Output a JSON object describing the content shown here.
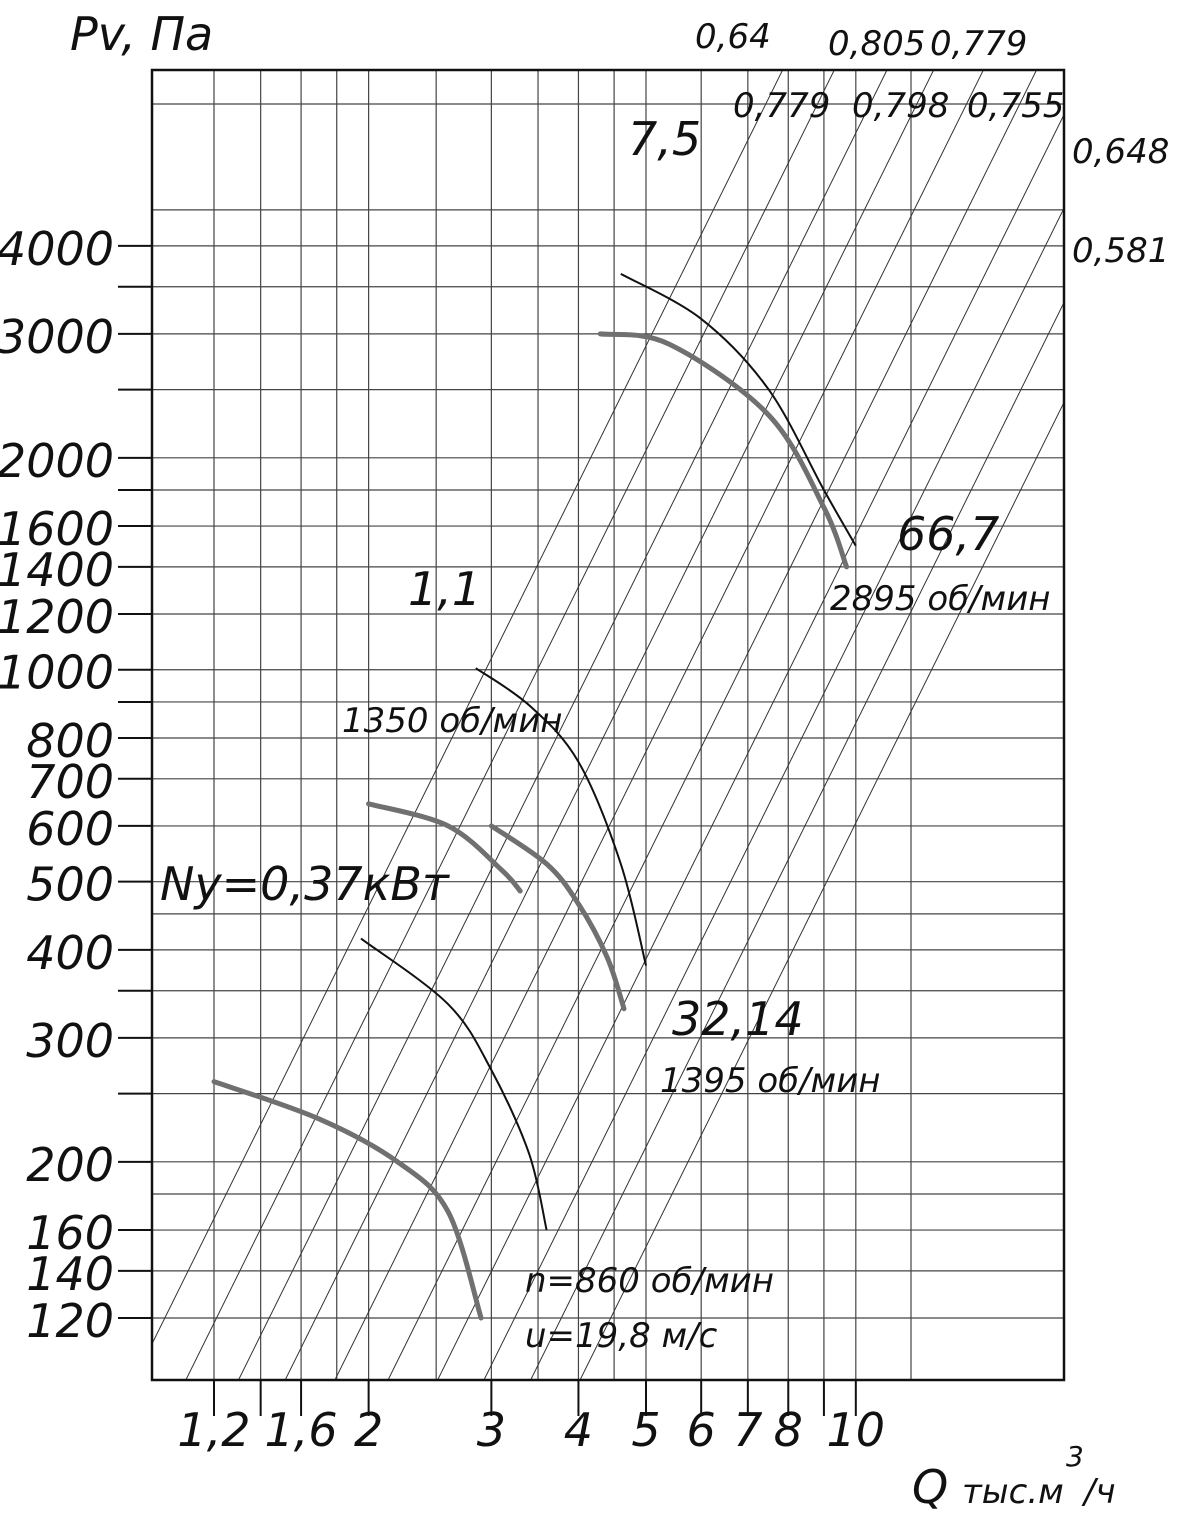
{
  "chart_data": {
    "type": "line",
    "scale": "log-log",
    "ylabel": "Pv, Па",
    "xlabel": "Q тыс.м³/ч",
    "xlim": [
      1.0,
      15.0
    ],
    "ylim": [
      100,
      5000
    ],
    "y_ticks_labeled": [
      120,
      140,
      160,
      200,
      300,
      400,
      500,
      600,
      700,
      800,
      1000,
      1200,
      1400,
      1600,
      2000,
      3000,
      4000
    ],
    "y_ticks_unlabeled": [
      250,
      350,
      900,
      1800,
      2500,
      3500
    ],
    "x_ticks_labeled": [
      {
        "value": 1.2,
        "label": "1,2"
      },
      {
        "value": 1.6,
        "label": "1,6"
      },
      {
        "value": 2,
        "label": "2"
      },
      {
        "value": 3,
        "label": "3"
      },
      {
        "value": 4,
        "label": "4"
      },
      {
        "value": 5,
        "label": "5"
      },
      {
        "value": 6,
        "label": "6"
      },
      {
        "value": 7,
        "label": "7"
      },
      {
        "value": 8,
        "label": "8"
      },
      {
        "value": 10,
        "label": "10"
      }
    ],
    "x_ticks_unlabeled": [
      1.4,
      9
    ],
    "x_grid": [
      1.2,
      1.4,
      1.6,
      1.8,
      2,
      2.5,
      3,
      3.5,
      4,
      4.5,
      5,
      6,
      7,
      8,
      9,
      10,
      12
    ],
    "y_grid": [
      120,
      140,
      160,
      180,
      200,
      250,
      300,
      350,
      400,
      450,
      500,
      600,
      700,
      800,
      900,
      1000,
      1200,
      1400,
      1600,
      1800,
      2000,
      2500,
      3000,
      3500,
      4000,
      4500
    ],
    "grid": true,
    "diagonal_lines": {
      "description": "lines of constant velocity (Pv ∝ Q²)",
      "anchors_Q_at_Pv_120": [
        1.02,
        1.21,
        1.44,
        1.68,
        1.98,
        2.36,
        2.78,
        3.24,
        3.78,
        4.45
      ]
    },
    "series": [
      {
        "style": "thin",
        "points": [
          [
            1.95,
            415
          ],
          [
            2.6,
            335
          ],
          [
            3.0,
            270
          ],
          [
            3.4,
            205
          ],
          [
            3.6,
            160
          ]
        ]
      },
      {
        "style": "thick",
        "points": [
          [
            1.2,
            260
          ],
          [
            1.7,
            230
          ],
          [
            2.2,
            200
          ],
          [
            2.6,
            170
          ],
          [
            2.9,
            120
          ]
        ]
      },
      {
        "style": "thin",
        "points": [
          [
            2.85,
            1005
          ],
          [
            3.4,
            890
          ],
          [
            4.0,
            740
          ],
          [
            4.6,
            530
          ],
          [
            5.0,
            380
          ]
        ]
      },
      {
        "style": "thick",
        "points": [
          [
            2.0,
            645
          ],
          [
            2.6,
            600
          ],
          [
            3.1,
            520
          ],
          [
            3.3,
            485
          ]
        ]
      },
      {
        "style": "thick",
        "points": [
          [
            3.0,
            600
          ],
          [
            3.6,
            530
          ],
          [
            4.0,
            465
          ],
          [
            4.4,
            390
          ],
          [
            4.65,
            330
          ]
        ]
      },
      {
        "style": "thin",
        "points": [
          [
            4.6,
            3650
          ],
          [
            6.0,
            3150
          ],
          [
            7.5,
            2500
          ],
          [
            9.0,
            1800
          ],
          [
            10.0,
            1500
          ]
        ]
      },
      {
        "style": "thick",
        "points": [
          [
            4.3,
            3000
          ],
          [
            5.4,
            2900
          ],
          [
            7.5,
            2300
          ],
          [
            9.0,
            1700
          ],
          [
            9.7,
            1400
          ]
        ]
      }
    ],
    "annotations": {
      "top_efficiency_row1": [
        "0,64",
        "0,805",
        "0,779"
      ],
      "top_efficiency_row2": [
        "0,779",
        "0,798",
        "0,755"
      ],
      "right_efficiency": [
        "0,648",
        "0,581"
      ],
      "power_labels": [
        "Ny=0,37кВт",
        "1,1",
        "7,5",
        "32,14",
        "66,7"
      ],
      "speed_labels": [
        "1350 об/мин",
        "1395 об/мин",
        "2895 об/мин"
      ],
      "bottom_note_1": "n=860 об/мин",
      "bottom_note_2": "u=19,8 м/с"
    }
  }
}
